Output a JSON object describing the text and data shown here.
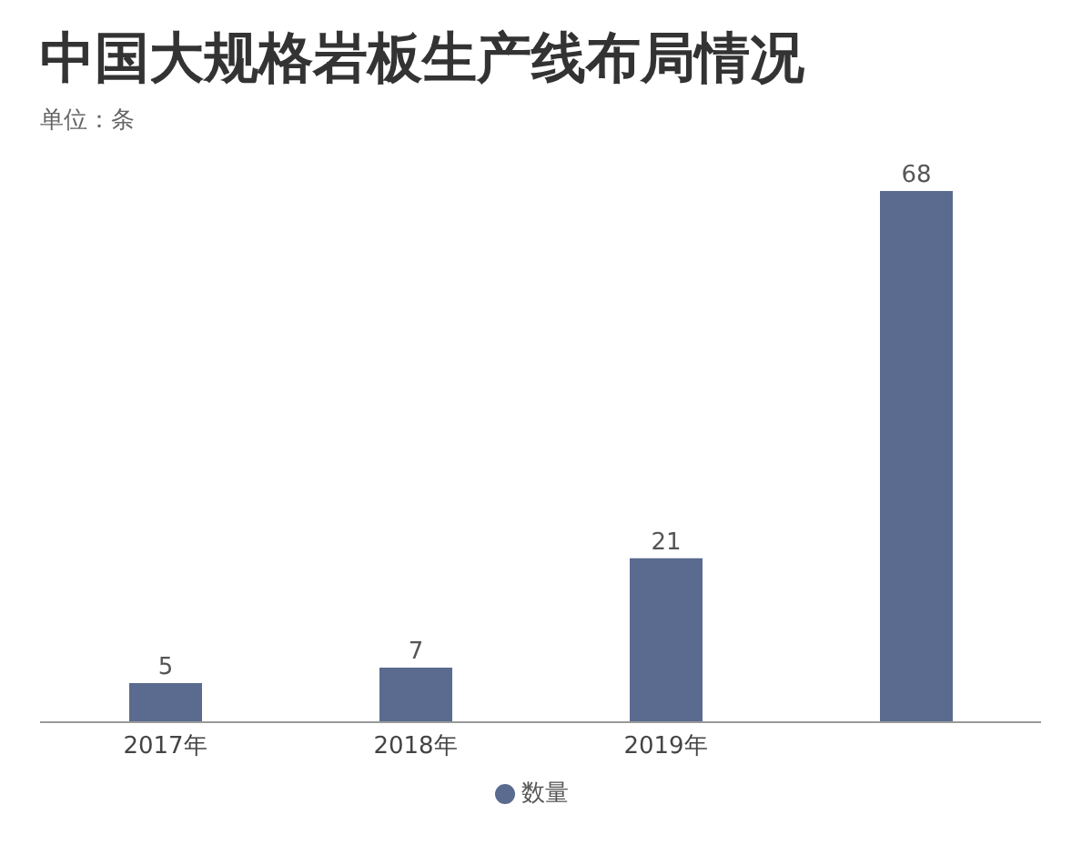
{
  "chart_data": {
    "type": "bar",
    "title": "中国大规格岩板生产线布局情况",
    "subtitle": "单位：条",
    "categories": [
      "2017年",
      "2018年",
      "2019年",
      null
    ],
    "series": [
      {
        "name": "数量",
        "color": "#5a6b8f",
        "values": [
          5,
          7,
          21,
          68
        ]
      }
    ],
    "data_labels": true,
    "legend": "bottom",
    "grid": false
  }
}
